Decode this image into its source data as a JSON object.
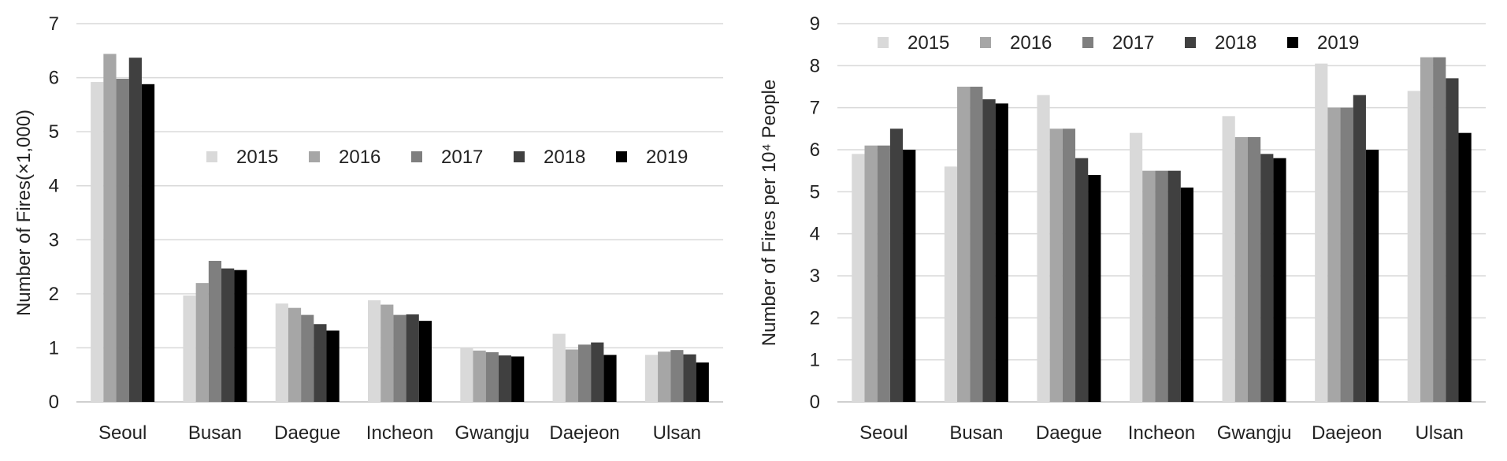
{
  "chart_data": [
    {
      "type": "bar",
      "ylabel": "Number of Fires(×1,000)",
      "ylim": [
        0,
        7
      ],
      "yticks": [
        0,
        1,
        2,
        3,
        4,
        5,
        6,
        7
      ],
      "grid": true,
      "legend_position": "center-right",
      "categories": [
        "Seoul",
        "Busan",
        "Daegue",
        "Incheon",
        "Gwangju",
        "Daejeon",
        "Ulsan"
      ],
      "series": [
        {
          "name": "2015",
          "color": "#d9d9d9",
          "values": [
            5.92,
            1.97,
            1.82,
            1.88,
            1.0,
            1.26,
            0.87
          ]
        },
        {
          "name": "2016",
          "color": "#a6a6a6",
          "values": [
            6.44,
            2.2,
            1.74,
            1.8,
            0.95,
            0.97,
            0.93
          ]
        },
        {
          "name": "2017",
          "color": "#7f7f7f",
          "values": [
            5.98,
            2.61,
            1.61,
            1.61,
            0.92,
            1.06,
            0.96
          ]
        },
        {
          "name": "2018",
          "color": "#404040",
          "values": [
            6.37,
            2.47,
            1.44,
            1.62,
            0.86,
            1.1,
            0.88
          ]
        },
        {
          "name": "2019",
          "color": "#000000",
          "values": [
            5.88,
            2.44,
            1.32,
            1.5,
            0.84,
            0.87,
            0.73
          ]
        }
      ]
    },
    {
      "type": "bar",
      "ylabel": "Number of Fires per 10⁴ People",
      "ylim": [
        0,
        9
      ],
      "yticks": [
        0,
        1,
        2,
        3,
        4,
        5,
        6,
        7,
        8,
        9
      ],
      "grid": true,
      "legend_position": "top-left",
      "categories": [
        "Seoul",
        "Busan",
        "Daegue",
        "Incheon",
        "Gwangju",
        "Daejeon",
        "Ulsan"
      ],
      "series": [
        {
          "name": "2015",
          "color": "#d9d9d9",
          "values": [
            5.9,
            5.6,
            7.3,
            6.4,
            6.8,
            8.05,
            7.4
          ]
        },
        {
          "name": "2016",
          "color": "#a6a6a6",
          "values": [
            6.1,
            7.5,
            6.5,
            5.5,
            6.3,
            7.0,
            8.2
          ]
        },
        {
          "name": "2017",
          "color": "#7f7f7f",
          "values": [
            6.1,
            7.5,
            6.5,
            5.5,
            6.3,
            7.0,
            8.2
          ]
        },
        {
          "name": "2018",
          "color": "#404040",
          "values": [
            6.5,
            7.2,
            5.8,
            5.5,
            5.9,
            7.3,
            7.7
          ]
        },
        {
          "name": "2019",
          "color": "#000000",
          "values": [
            6.0,
            7.1,
            5.4,
            5.1,
            5.8,
            6.0,
            6.4
          ]
        }
      ]
    }
  ]
}
